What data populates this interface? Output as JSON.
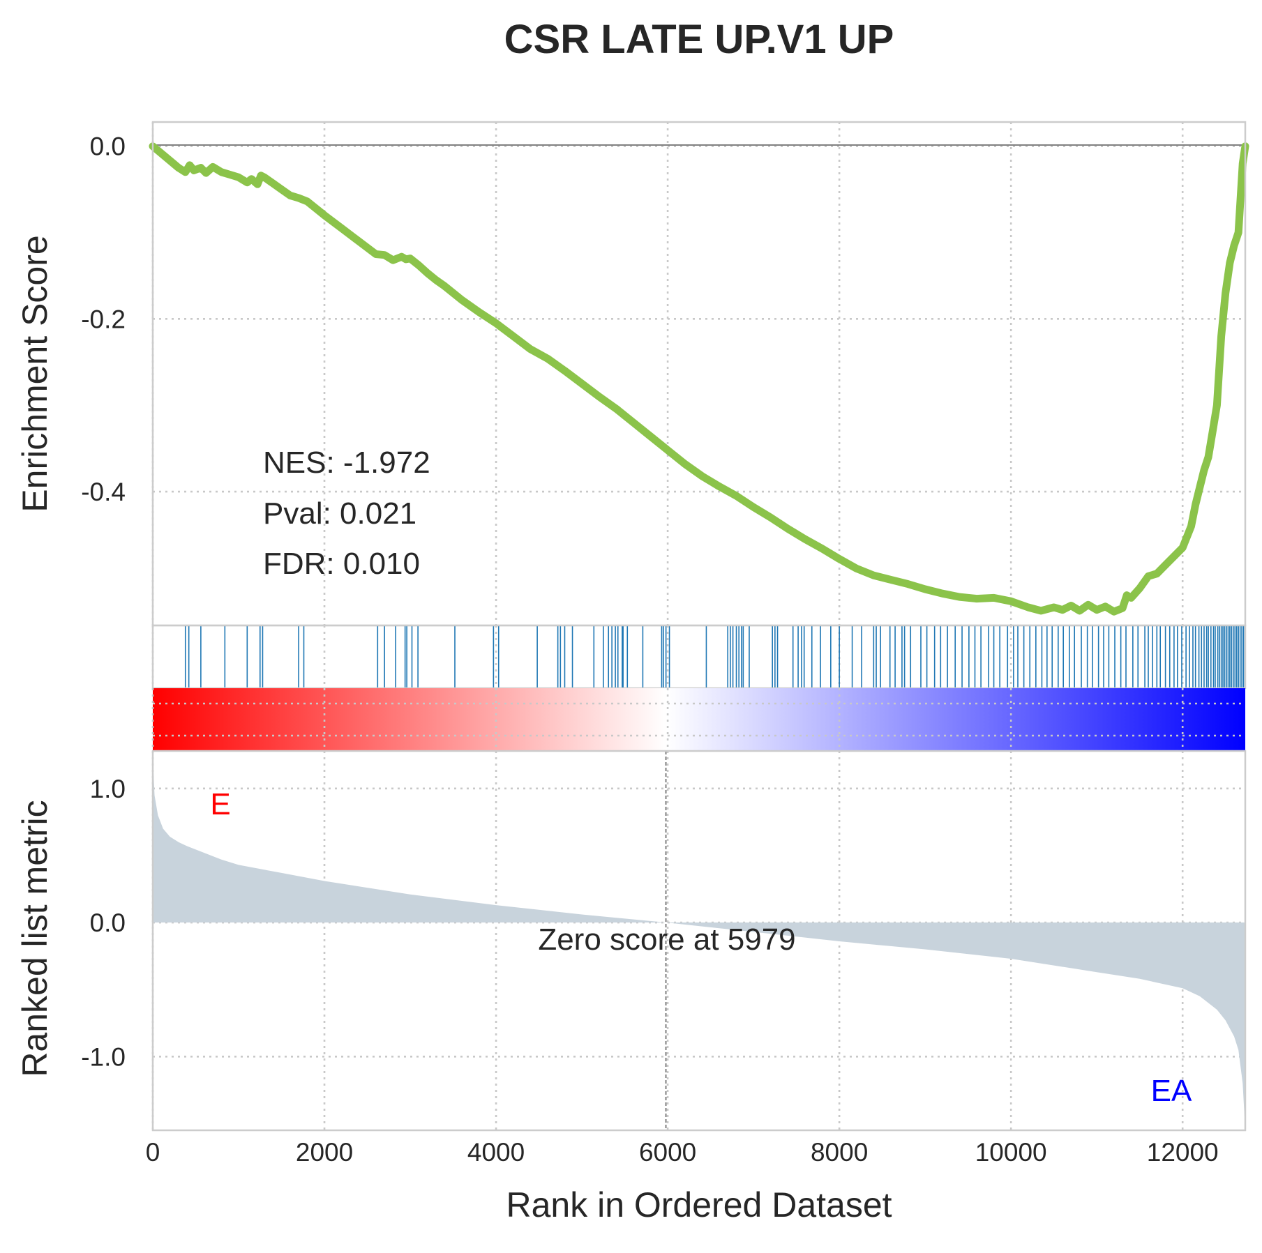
{
  "chart_data": {
    "type": "line",
    "title": "CSR LATE UP.V1 UP",
    "xlabel": "Rank in Ordered Dataset",
    "x_ticks": [
      "0",
      "2000",
      "4000",
      "6000",
      "8000",
      "10000",
      "12000"
    ],
    "xlim": [
      0,
      12730
    ],
    "grid": true,
    "enrichment_panel": {
      "ylabel": "Enrichment Score",
      "y_ticks": [
        "0.0",
        "-0.2",
        "-0.4"
      ],
      "ylim": [
        -0.555,
        0.028
      ],
      "line_color": "#8bc34a",
      "curve": {
        "x": [
          0,
          300,
          380,
          430,
          480,
          560,
          620,
          700,
          800,
          900,
          1000,
          1100,
          1150,
          1220,
          1260,
          1300,
          1400,
          1500,
          1600,
          1700,
          1800,
          2000,
          2200,
          2400,
          2600,
          2700,
          2800,
          2900,
          2950,
          3000,
          3100,
          3200,
          3300,
          3400,
          3600,
          3800,
          4000,
          4200,
          4400,
          4600,
          4800,
          5000,
          5200,
          5400,
          5600,
          5800,
          6000,
          6200,
          6400,
          6600,
          6800,
          7000,
          7200,
          7400,
          7600,
          7800,
          8000,
          8200,
          8400,
          8600,
          8800,
          9000,
          9200,
          9400,
          9600,
          9800,
          10000,
          10200,
          10350,
          10500,
          10600,
          10700,
          10800,
          10900,
          11000,
          11100,
          11200,
          11300,
          11350,
          11400,
          11500,
          11600,
          11700,
          11800,
          11900,
          12000,
          12100,
          12150,
          12200,
          12250,
          12300,
          12350,
          12400,
          12450,
          12500,
          12550,
          12600,
          12650,
          12700,
          12730
        ],
        "y": [
          0,
          -0.025,
          -0.03,
          -0.022,
          -0.028,
          -0.025,
          -0.031,
          -0.024,
          -0.03,
          -0.033,
          -0.036,
          -0.042,
          -0.038,
          -0.044,
          -0.034,
          -0.036,
          -0.043,
          -0.05,
          -0.057,
          -0.06,
          -0.064,
          -0.08,
          -0.095,
          -0.11,
          -0.125,
          -0.126,
          -0.132,
          -0.128,
          -0.131,
          -0.13,
          -0.138,
          -0.147,
          -0.155,
          -0.162,
          -0.178,
          -0.192,
          -0.205,
          -0.22,
          -0.235,
          -0.246,
          -0.26,
          -0.275,
          -0.29,
          -0.304,
          -0.32,
          -0.336,
          -0.352,
          -0.368,
          -0.382,
          -0.394,
          -0.405,
          -0.418,
          -0.43,
          -0.443,
          -0.455,
          -0.466,
          -0.478,
          -0.489,
          -0.497,
          -0.502,
          -0.507,
          -0.513,
          -0.518,
          -0.522,
          -0.524,
          -0.523,
          -0.527,
          -0.534,
          -0.538,
          -0.534,
          -0.537,
          -0.532,
          -0.538,
          -0.531,
          -0.537,
          -0.533,
          -0.539,
          -0.535,
          -0.52,
          -0.523,
          -0.512,
          -0.498,
          -0.495,
          -0.485,
          -0.475,
          -0.465,
          -0.44,
          -0.415,
          -0.395,
          -0.375,
          -0.36,
          -0.33,
          -0.3,
          -0.22,
          -0.17,
          -0.135,
          -0.115,
          -0.1,
          -0.02,
          0
        ]
      },
      "stats": [
        "NES: -1.972",
        "Pval: 0.021",
        "FDR: 0.010"
      ]
    },
    "hits_panel": {
      "color": "#1f77b4",
      "positions": [
        380,
        420,
        560,
        840,
        1100,
        1250,
        1280,
        1700,
        1760,
        2620,
        2700,
        2830,
        2940,
        2960,
        3020,
        3090,
        3520,
        3970,
        4030,
        4480,
        4720,
        4750,
        4800,
        4890,
        5140,
        5250,
        5310,
        5350,
        5390,
        5420,
        5470,
        5480,
        5530,
        5710,
        5930,
        5950,
        5980,
        6020,
        6450,
        6700,
        6730,
        6760,
        6800,
        6830,
        6860,
        6880,
        6950,
        7220,
        7250,
        7280,
        7460,
        7520,
        7560,
        7590,
        7680,
        7780,
        7900,
        8000,
        8150,
        8260,
        8400,
        8430,
        8480,
        8590,
        8650,
        8730,
        8760,
        8830,
        8950,
        9020,
        9110,
        9180,
        9260,
        9350,
        9430,
        9510,
        9580,
        9650,
        9740,
        9800,
        9870,
        9960,
        10030,
        10080,
        10150,
        10220,
        10290,
        10360,
        10420,
        10480,
        10550,
        10610,
        10680,
        10740,
        10820,
        10890,
        10950,
        11020,
        11080,
        11140,
        11210,
        11280,
        11340,
        11420,
        11480,
        11560,
        11600,
        11650,
        11700,
        11740,
        11800,
        11850,
        11900,
        11940,
        11990,
        12040,
        12080,
        12120,
        12150,
        12190,
        12220,
        12250,
        12280,
        12300,
        12330,
        12360,
        12380,
        12410,
        12430,
        12450,
        12470,
        12490,
        12510,
        12530,
        12550,
        12570,
        12590,
        12610,
        12630,
        12650,
        12670,
        12690,
        12710
      ]
    },
    "colorbar": {
      "colors": [
        "#ff0000",
        "#ffffff",
        "#0000ff"
      ]
    },
    "metric_panel": {
      "ylabel": "Ranked list metric",
      "y_ticks": [
        "1.0",
        "0.0",
        "-1.0"
      ],
      "ylim": [
        -1.55,
        1.28
      ],
      "fill_color": "#c8d3dc",
      "curve": {
        "x": [
          0,
          20,
          60,
          120,
          200,
          300,
          400,
          600,
          800,
          1000,
          1500,
          2000,
          3000,
          4000,
          5000,
          5979,
          7000,
          8000,
          9000,
          10000,
          10500,
          11000,
          11500,
          12000,
          12200,
          12400,
          12500,
          12600,
          12650,
          12700,
          12730
        ],
        "y": [
          1.25,
          0.95,
          0.8,
          0.7,
          0.64,
          0.6,
          0.57,
          0.52,
          0.47,
          0.43,
          0.37,
          0.31,
          0.21,
          0.13,
          0.06,
          0.0,
          -0.07,
          -0.14,
          -0.2,
          -0.27,
          -0.32,
          -0.37,
          -0.42,
          -0.49,
          -0.55,
          -0.65,
          -0.73,
          -0.85,
          -0.95,
          -1.2,
          -1.55
        ]
      },
      "zero_crossing": 5979,
      "zero_label": "Zero score at 5979",
      "left_label": "E",
      "left_label_color": "#ff0000",
      "right_label": "EA",
      "right_label_color": "#0000ff"
    }
  }
}
